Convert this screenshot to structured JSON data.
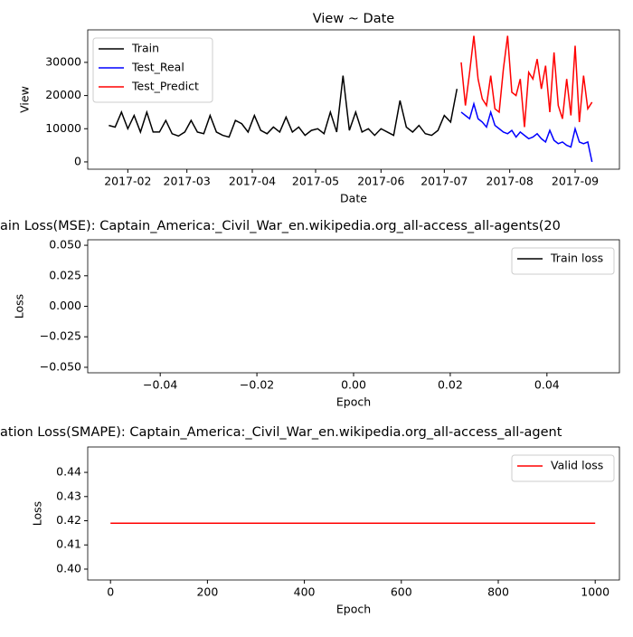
{
  "chart_data": [
    {
      "type": "line",
      "title": "View ~ Date",
      "xlabel": "Date",
      "ylabel": "View",
      "xlim": [
        12,
        264
      ],
      "xticks": [
        {
          "value": 31,
          "label": "2017-02"
        },
        {
          "value": 59,
          "label": "2017-03"
        },
        {
          "value": 90,
          "label": "2017-04"
        },
        {
          "value": 120,
          "label": "2017-05"
        },
        {
          "value": 151,
          "label": "2017-06"
        },
        {
          "value": 181,
          "label": "2017-07"
        },
        {
          "value": 212,
          "label": "2017-08"
        },
        {
          "value": 243,
          "label": "2017-09"
        }
      ],
      "ylim": [
        -2200,
        39800
      ],
      "yticks": [
        0,
        10000,
        20000,
        30000
      ],
      "legend": "upper left",
      "series": [
        {
          "name": "Train",
          "color": "#000000",
          "x": [
            22,
            25,
            28,
            31,
            34,
            37,
            40,
            43,
            46,
            49,
            52,
            55,
            58,
            61,
            64,
            67,
            70,
            73,
            76,
            79,
            82,
            85,
            88,
            91,
            94,
            97,
            100,
            103,
            106,
            109,
            112,
            115,
            118,
            121,
            124,
            127,
            130,
            133,
            136,
            139,
            142,
            145,
            148,
            151,
            154,
            157,
            160,
            163,
            166,
            169,
            172,
            175,
            178,
            181,
            184,
            187
          ],
          "values": [
            11000,
            10500,
            15000,
            10000,
            14000,
            9000,
            15000,
            9000,
            9000,
            12500,
            8500,
            7800,
            9000,
            12500,
            9000,
            8500,
            14000,
            9000,
            8000,
            7500,
            12500,
            11500,
            9000,
            14000,
            9500,
            8500,
            10500,
            9000,
            13500,
            9000,
            10500,
            8000,
            9500,
            10000,
            8500,
            15000,
            9000,
            26000,
            9500,
            15000,
            9000,
            10000,
            8000,
            10000,
            9000,
            8000,
            18500,
            10500,
            9000,
            11000,
            8500,
            8000,
            9500,
            14000,
            12000,
            22000
          ]
        },
        {
          "name": "Test_Real",
          "color": "#0000ff",
          "x": [
            189,
            191,
            193,
            195,
            197,
            199,
            201,
            203,
            205,
            207,
            209,
            211,
            213,
            215,
            217,
            219,
            221,
            223,
            225,
            227,
            229,
            231,
            233,
            235,
            237,
            239,
            241,
            243,
            245,
            247,
            249,
            251
          ],
          "values": [
            15000,
            14000,
            13000,
            17500,
            13000,
            12000,
            10500,
            15000,
            11000,
            10000,
            9000,
            8500,
            9500,
            7500,
            9000,
            8000,
            7000,
            7500,
            8500,
            7000,
            6000,
            9500,
            6500,
            5500,
            6000,
            5000,
            4500,
            10000,
            6000,
            5500,
            6000,
            0
          ]
        },
        {
          "name": "Test_Predict",
          "color": "#ff0000",
          "x": [
            189,
            191,
            193,
            195,
            197,
            199,
            201,
            203,
            205,
            207,
            209,
            211,
            213,
            215,
            217,
            219,
            221,
            223,
            225,
            227,
            229,
            231,
            233,
            235,
            237,
            239,
            241,
            243,
            245,
            247,
            249,
            251
          ],
          "values": [
            30000,
            17000,
            27000,
            38000,
            25000,
            19000,
            17000,
            26000,
            16000,
            15000,
            28000,
            38000,
            21000,
            20000,
            25000,
            10500,
            27000,
            25000,
            31000,
            22000,
            29000,
            15000,
            33000,
            17000,
            13000,
            25000,
            14000,
            35000,
            12000,
            26000,
            16000,
            18000
          ]
        }
      ]
    },
    {
      "type": "line",
      "title": "ain Loss(MSE): Captain_America:_Civil_War_en.wikipedia.org_all-access_all-agents(20",
      "xlabel": "Epoch",
      "ylabel": "Loss",
      "xlim": [
        -0.055,
        0.055
      ],
      "xticks": [
        {
          "value": -0.04,
          "label": "−0.04"
        },
        {
          "value": -0.02,
          "label": "−0.02"
        },
        {
          "value": 0,
          "label": "0.00"
        },
        {
          "value": 0.02,
          "label": "0.02"
        },
        {
          "value": 0.04,
          "label": "0.04"
        }
      ],
      "ylim": [
        -0.0545,
        0.0545
      ],
      "yticks": [
        {
          "value": -0.05,
          "label": "−0.050"
        },
        {
          "value": -0.025,
          "label": "−0.025"
        },
        {
          "value": 0,
          "label": "0.000"
        },
        {
          "value": 0.025,
          "label": "0.025"
        },
        {
          "value": 0.05,
          "label": "0.050"
        }
      ],
      "legend": "upper right",
      "series": [
        {
          "name": "Train loss",
          "color": "#000000",
          "x": [],
          "values": []
        }
      ]
    },
    {
      "type": "line",
      "title": "ation Loss(SMAPE): Captain_America:_Civil_War_en.wikipedia.org_all-access_all-agent",
      "xlabel": "Epoch",
      "ylabel": "Loss",
      "xlim": [
        -47,
        1050
      ],
      "xticks": [
        0,
        200,
        400,
        600,
        800,
        1000
      ],
      "ylim": [
        0.3955,
        0.4505
      ],
      "yticks": [
        {
          "value": 0.4,
          "label": "0.40"
        },
        {
          "value": 0.41,
          "label": "0.41"
        },
        {
          "value": 0.42,
          "label": "0.42"
        },
        {
          "value": 0.43,
          "label": "0.43"
        },
        {
          "value": 0.44,
          "label": "0.44"
        }
      ],
      "legend": "upper right",
      "series": [
        {
          "name": "Valid loss",
          "color": "#ff0000",
          "x": [
            0,
            1000
          ],
          "values": [
            0.419,
            0.419
          ]
        }
      ]
    }
  ]
}
